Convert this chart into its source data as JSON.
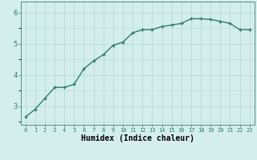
{
  "x": [
    0,
    1,
    2,
    3,
    4,
    5,
    6,
    7,
    8,
    9,
    10,
    11,
    12,
    13,
    14,
    15,
    16,
    17,
    18,
    19,
    20,
    21,
    22,
    23
  ],
  "y": [
    2.65,
    2.9,
    3.25,
    3.6,
    3.6,
    3.7,
    4.2,
    4.45,
    4.65,
    4.95,
    5.05,
    5.35,
    5.45,
    5.45,
    5.55,
    5.6,
    5.65,
    5.8,
    5.8,
    5.78,
    5.72,
    5.65,
    5.45,
    5.45
  ],
  "line_color": "#2d7d6e",
  "marker": "+",
  "marker_size": 3,
  "marker_lw": 1.0,
  "bg_color": "#d4eeee",
  "grid_color": "#b8d8d8",
  "xlabel": "Humidex (Indice chaleur)",
  "xlabel_fontsize": 7,
  "yticks": [
    3,
    4,
    5,
    6
  ],
  "xticks": [
    0,
    1,
    2,
    3,
    4,
    5,
    6,
    7,
    8,
    9,
    10,
    11,
    12,
    13,
    14,
    15,
    16,
    17,
    18,
    19,
    20,
    21,
    22,
    23
  ],
  "xlim": [
    -0.5,
    23.5
  ],
  "ylim": [
    2.4,
    6.35
  ],
  "line_width": 1.0,
  "tick_color": "#2d7d6e",
  "spine_color": "#5a8888"
}
